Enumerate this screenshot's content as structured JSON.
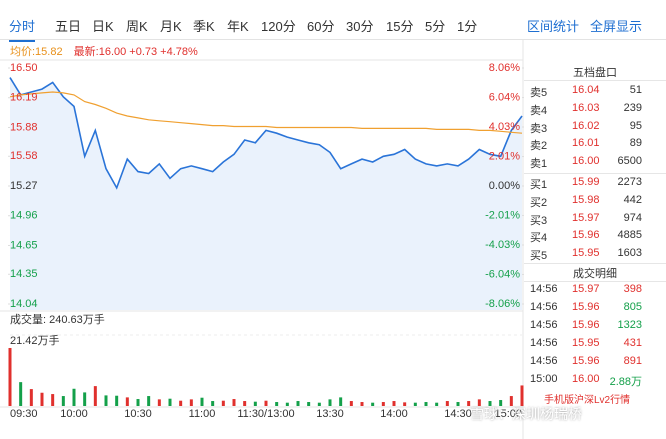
{
  "tabs": [
    "分时",
    "五日",
    "日K",
    "周K",
    "月K",
    "季K",
    "年K",
    "120分",
    "60分",
    "30分",
    "15分",
    "5分",
    "1分"
  ],
  "tab_actions": [
    "区间统计",
    "全屏显示"
  ],
  "info": {
    "avg": "均价:15.82",
    "last": "最新:16.00 +0.73 +4.78%"
  },
  "chart_data": [
    {
      "type": "line",
      "x": [
        "09:30",
        "09:35",
        "09:40",
        "09:45",
        "09:50",
        "09:55",
        "10:00",
        "10:05",
        "10:10",
        "10:15",
        "10:20",
        "10:25",
        "10:30",
        "10:35",
        "10:40",
        "10:45",
        "10:50",
        "10:55",
        "11:00",
        "11:05",
        "11:10",
        "11:15",
        "11:20",
        "11:25",
        "11:30",
        "13:05",
        "13:10",
        "13:15",
        "13:20",
        "13:25",
        "13:30",
        "13:35",
        "13:40",
        "13:45",
        "13:50",
        "13:55",
        "14:00",
        "14:05",
        "14:10",
        "14:15",
        "14:20",
        "14:25",
        "14:30",
        "14:35",
        "14:40",
        "14:45",
        "14:50",
        "14:55",
        "15:00"
      ],
      "series": [
        {
          "color": "#2a74d8",
          "fill": "#eaf2fc",
          "values": [
            16.4,
            16.22,
            16.25,
            16.28,
            16.35,
            16.2,
            16.1,
            15.58,
            15.85,
            15.45,
            15.25,
            15.55,
            15.42,
            15.4,
            15.5,
            15.35,
            15.45,
            15.48,
            15.45,
            15.42,
            15.52,
            15.6,
            15.75,
            15.72,
            15.85,
            15.82,
            15.78,
            15.75,
            15.72,
            15.7,
            15.62,
            15.45,
            15.5,
            15.55,
            15.52,
            15.58,
            15.6,
            15.65,
            15.55,
            15.5,
            15.48,
            15.5,
            15.48,
            15.55,
            15.65,
            15.6,
            15.58,
            15.85,
            16.0
          ]
        },
        {
          "color": "#f0a030",
          "values": [
            16.2,
            16.22,
            16.23,
            16.24,
            16.25,
            16.24,
            16.22,
            16.15,
            16.12,
            16.08,
            16.03,
            16.0,
            15.98,
            15.96,
            15.95,
            15.94,
            15.93,
            15.92,
            15.91,
            15.9,
            15.9,
            15.89,
            15.89,
            15.89,
            15.89,
            15.88,
            15.88,
            15.88,
            15.88,
            15.88,
            15.88,
            15.88,
            15.88,
            15.87,
            15.87,
            15.87,
            15.87,
            15.87,
            15.87,
            15.87,
            15.86,
            15.86,
            15.86,
            15.86,
            15.85,
            15.85,
            15.84,
            15.83,
            15.82
          ]
        }
      ],
      "ylim": [
        14.04,
        16.5
      ],
      "yticks": [
        {
          "value": 16.5,
          "label": "16.50"
        },
        16.19,
        15.88,
        15.58,
        15.27,
        14.96,
        14.65,
        14.35,
        14.04
      ],
      "y2lim": [
        -8.06,
        8.06
      ],
      "y2ticks": [
        {
          "value": 8.06,
          "label": "8.06%"
        },
        {
          "value": 6.04,
          "label": "6.04%"
        },
        {
          "value": 4.03,
          "label": "4.03%"
        },
        {
          "value": 2.01,
          "label": "2.01%"
        },
        {
          "value": 0,
          "label": "0.00%"
        },
        {
          "value": -2.01,
          "label": "-2.01%"
        },
        {
          "value": -4.03,
          "label": "-4.03%"
        },
        {
          "value": -6.04,
          "label": "-6.04%"
        },
        {
          "value": -8.06,
          "label": "-8.06%"
        }
      ]
    },
    {
      "type": "bar",
      "title": "成交量: 240.63万手",
      "values": [
        17.5,
        7.2,
        5.1,
        4.0,
        3.6,
        3.0,
        5.2,
        4.1,
        6.0,
        3.2,
        3.1,
        2.6,
        2.1,
        3.0,
        2.0,
        2.2,
        1.6,
        2.0,
        2.5,
        1.5,
        1.6,
        2.1,
        1.5,
        1.3,
        1.6,
        1.2,
        1.0,
        1.5,
        1.2,
        1.0,
        2.0,
        2.6,
        1.5,
        1.2,
        1.0,
        1.2,
        1.5,
        1.1,
        1.0,
        1.2,
        1.0,
        1.5,
        1.2,
        1.5,
        2.0,
        1.5,
        1.8,
        3.0,
        6.2
      ],
      "up_color": "#e0302d",
      "down_color": "#14a04a",
      "ylim": [
        0,
        21.42
      ],
      "yticks": [
        {
          "value": 21.42,
          "label": "21.42万手"
        }
      ],
      "xticks": [
        "09:30",
        "10:00",
        "10:30",
        "11:00",
        "11:30/13:00",
        "13:30",
        "14:00",
        "14:30",
        "15:00"
      ]
    }
  ],
  "order_book": {
    "title": "五档盘口",
    "rows": [
      [
        "卖5",
        "16.04",
        "51"
      ],
      [
        "卖4",
        "16.03",
        "239"
      ],
      [
        "卖3",
        "16.02",
        "95"
      ],
      [
        "卖2",
        "16.01",
        "89"
      ],
      [
        "卖1",
        "16.00",
        "6500"
      ],
      [
        "买1",
        "15.99",
        "2273"
      ],
      [
        "买2",
        "15.98",
        "442"
      ],
      [
        "买3",
        "15.97",
        "974"
      ],
      [
        "买4",
        "15.96",
        "4885"
      ],
      [
        "买5",
        "15.95",
        "1603"
      ]
    ]
  },
  "trades": {
    "title": "成交明细",
    "rows": [
      [
        "14:56",
        "15.97",
        "398"
      ],
      [
        "14:56",
        "15.96",
        "805"
      ],
      [
        "14:56",
        "15.96",
        "1323"
      ],
      [
        "14:56",
        "15.95",
        "431"
      ],
      [
        "14:56",
        "15.96",
        "891"
      ],
      [
        "15:00",
        "16.00",
        "2.88万"
      ]
    ],
    "footer": "手机版沪深Lv2行情"
  },
  "watermark": {
    "center": "雪球",
    "corner": "雪球：深圳杨瑞桥"
  }
}
